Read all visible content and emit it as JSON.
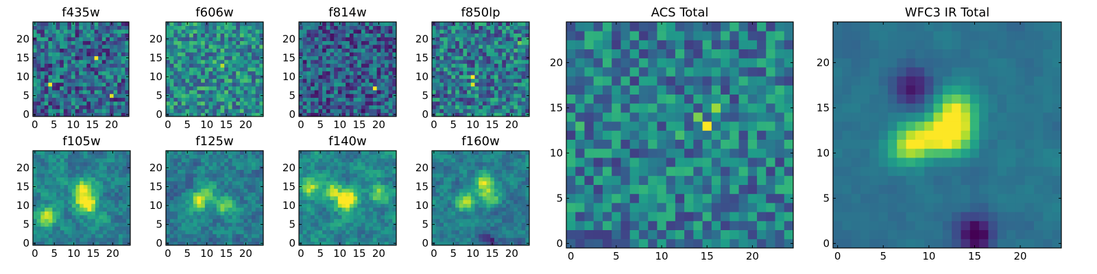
{
  "chart_data": [
    {
      "type": "heatmap",
      "title": "f435w",
      "xticks": [
        "0",
        "5",
        "10",
        "15",
        "20"
      ],
      "yticks": [
        "0",
        "5",
        "10",
        "15",
        "20"
      ],
      "xlim": [
        -0.5,
        24.5
      ],
      "ylim": [
        -0.5,
        24.5
      ],
      "grid": "off",
      "colormap": "viridis",
      "size": 25,
      "seed": 11,
      "peaks": [
        [
          16,
          15,
          1.0
        ],
        [
          4,
          8,
          1.0
        ],
        [
          20,
          5,
          0.95
        ],
        [
          18,
          8,
          0.6
        ]
      ],
      "base": 0.34,
      "noise": 0.28,
      "smooth": 0
    },
    {
      "type": "heatmap",
      "title": "f606w",
      "xticks": [
        "0",
        "5",
        "10",
        "15",
        "20"
      ],
      "yticks": [
        "0",
        "5",
        "10",
        "15",
        "20"
      ],
      "xlim": [
        -0.5,
        24.5
      ],
      "ylim": [
        -0.5,
        24.5
      ],
      "grid": "off",
      "colormap": "viridis",
      "size": 25,
      "seed": 23,
      "peaks": [
        [
          14,
          13,
          0.9
        ],
        [
          12,
          14,
          0.75
        ],
        [
          3,
          13,
          0.65
        ],
        [
          15,
          14,
          0.7
        ]
      ],
      "base": 0.48,
      "noise": 0.26,
      "smooth": 0
    },
    {
      "type": "heatmap",
      "title": "f814w",
      "xticks": [
        "0",
        "5",
        "10",
        "15",
        "20"
      ],
      "yticks": [
        "0",
        "5",
        "10",
        "15",
        "20"
      ],
      "xlim": [
        -0.5,
        24.5
      ],
      "ylim": [
        -0.5,
        24.5
      ],
      "grid": "off",
      "colormap": "viridis",
      "size": 25,
      "seed": 37,
      "peaks": [
        [
          19,
          7,
          1.0
        ],
        [
          16,
          17,
          0.55
        ]
      ],
      "base": 0.3,
      "noise": 0.26,
      "smooth": 0
    },
    {
      "type": "heatmap",
      "title": "f850lp",
      "xticks": [
        "0",
        "5",
        "10",
        "15",
        "20"
      ],
      "yticks": [
        "0",
        "5",
        "10",
        "15",
        "20"
      ],
      "xlim": [
        -0.5,
        24.5
      ],
      "ylim": [
        -0.5,
        24.5
      ],
      "grid": "off",
      "colormap": "viridis",
      "size": 25,
      "seed": 41,
      "peaks": [
        [
          10,
          10,
          1.0
        ],
        [
          10,
          8,
          0.95
        ],
        [
          22,
          19,
          0.8
        ],
        [
          21,
          17,
          0.7
        ]
      ],
      "base": 0.4,
      "noise": 0.28,
      "smooth": 0
    },
    {
      "type": "heatmap",
      "title": "f105w",
      "xticks": [
        "0",
        "5",
        "10",
        "15",
        "20"
      ],
      "yticks": [
        "0",
        "5",
        "10",
        "15",
        "20"
      ],
      "xlim": [
        -0.5,
        24.5
      ],
      "ylim": [
        -0.5,
        24.5
      ],
      "grid": "off",
      "colormap": "viridis",
      "size": 25,
      "seed": 53,
      "peaks": [
        [
          14,
          10,
          1.0
        ],
        [
          12,
          12,
          0.8
        ],
        [
          3,
          7,
          0.8
        ],
        [
          13,
          15,
          0.7
        ]
      ],
      "base": 0.45,
      "noise": 0.24,
      "smooth": 1
    },
    {
      "type": "heatmap",
      "title": "f125w",
      "xticks": [
        "0",
        "5",
        "10",
        "15",
        "20"
      ],
      "yticks": [
        "0",
        "5",
        "10",
        "15",
        "20"
      ],
      "xlim": [
        -0.5,
        24.5
      ],
      "ylim": [
        -0.5,
        24.5
      ],
      "grid": "off",
      "colormap": "viridis",
      "size": 25,
      "seed": 67,
      "peaks": [
        [
          8,
          11,
          1.0
        ],
        [
          15,
          10,
          0.7
        ],
        [
          10,
          14,
          0.6
        ]
      ],
      "base": 0.42,
      "noise": 0.24,
      "smooth": 1
    },
    {
      "type": "heatmap",
      "title": "f140w",
      "xticks": [
        "0",
        "5",
        "10",
        "15",
        "20"
      ],
      "yticks": [
        "0",
        "5",
        "10",
        "15",
        "20"
      ],
      "xlim": [
        -0.5,
        24.5
      ],
      "ylim": [
        -0.5,
        24.5
      ],
      "grid": "off",
      "colormap": "viridis",
      "size": 25,
      "seed": 71,
      "peaks": [
        [
          11,
          11,
          1.0
        ],
        [
          13,
          12,
          0.85
        ],
        [
          2,
          15,
          0.8
        ],
        [
          20,
          13,
          0.7
        ],
        [
          8,
          14,
          0.7
        ]
      ],
      "base": 0.46,
      "noise": 0.24,
      "smooth": 1
    },
    {
      "type": "heatmap",
      "title": "f160w",
      "xticks": [
        "0",
        "5",
        "10",
        "15",
        "20"
      ],
      "yticks": [
        "0",
        "5",
        "10",
        "15",
        "20"
      ],
      "xlim": [
        -0.5,
        24.5
      ],
      "ylim": [
        -0.5,
        24.5
      ],
      "grid": "off",
      "colormap": "viridis",
      "size": 25,
      "seed": 83,
      "peaks": [
        [
          13,
          16,
          1.0
        ],
        [
          8,
          11,
          0.95
        ],
        [
          14,
          12,
          0.9
        ],
        [
          14,
          1,
          -0.6
        ]
      ],
      "base": 0.42,
      "noise": 0.22,
      "smooth": 1
    },
    {
      "type": "heatmap",
      "title": "ACS Total",
      "xticks": [
        "0",
        "5",
        "10",
        "15",
        "20"
      ],
      "yticks": [
        "0",
        "5",
        "10",
        "15",
        "20"
      ],
      "xlim": [
        -0.5,
        24.5
      ],
      "ylim": [
        -0.5,
        24.5
      ],
      "grid": "off",
      "colormap": "viridis",
      "size": 25,
      "seed": 97,
      "peaks": [
        [
          15,
          13,
          1.0
        ],
        [
          16,
          15,
          0.85
        ],
        [
          14,
          14,
          0.8
        ],
        [
          12,
          12,
          0.7
        ],
        [
          1,
          13,
          0.7
        ],
        [
          19,
          8,
          0.65
        ],
        [
          24,
          7,
          0.65
        ],
        [
          4,
          8,
          0.65
        ]
      ],
      "base": 0.42,
      "noise": 0.24,
      "smooth": 0
    },
    {
      "type": "heatmap",
      "title": "WFC3 IR Total",
      "xticks": [
        "0",
        "5",
        "10",
        "15",
        "20"
      ],
      "yticks": [
        "0",
        "5",
        "10",
        "15",
        "20"
      ],
      "xlim": [
        -0.5,
        24.5
      ],
      "ylim": [
        -0.5,
        24.5
      ],
      "grid": "off",
      "colormap": "viridis",
      "size": 25,
      "seed": 109,
      "peaks": [
        [
          8,
          11,
          1.0
        ],
        [
          13,
          15,
          0.85
        ],
        [
          13,
          12,
          0.9
        ],
        [
          11,
          12,
          0.75
        ],
        [
          15,
          1,
          -0.7
        ],
        [
          8,
          17,
          -0.55
        ]
      ],
      "base": 0.38,
      "noise": 0.12,
      "smooth": 2
    }
  ]
}
